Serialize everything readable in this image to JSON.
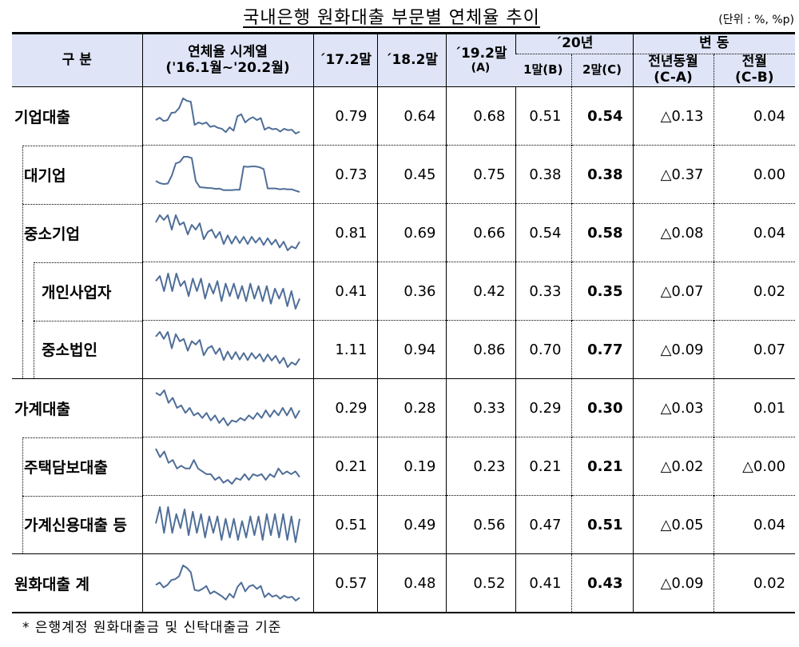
{
  "title": "국내은행 원화대출 부문별 연체율 추이",
  "unit": "(단위 : %, %p)",
  "header": {
    "category": "구 분",
    "series_title": "연체율 시계열",
    "series_range": "('16.1월~'20.2월)",
    "col_17": "´17.2말",
    "col_18": "´18.2말",
    "col_19": "´19.2말",
    "col_19_sub": "(A)",
    "year_20": "´20년",
    "col_20_1": "1말(B)",
    "col_20_2": "2말(C)",
    "change": "변 동",
    "yoy": "전년동월",
    "yoy_sub": "(C-A)",
    "mom": "전월",
    "mom_sub": "(C-B)"
  },
  "spark_color": "#4f6e98",
  "rows": [
    {
      "label": "기업대출",
      "level": 0,
      "values": [
        "0.79",
        "0.64",
        "0.68",
        "0.51",
        "0.54",
        "△0.13",
        "0.04"
      ],
      "trend": [
        5,
        5.5,
        4.8,
        5,
        6.5,
        6.6,
        7.5,
        9.5,
        9,
        8.8,
        4,
        4.5,
        4.2,
        4.5,
        3.6,
        3.8,
        3.4,
        3.2,
        2.5,
        3.5,
        2.8,
        5.8,
        6.2,
        4.5,
        5.2,
        5.6,
        5,
        5.4,
        3,
        3.5,
        3.1,
        3.2,
        2.6,
        3.2,
        2.9,
        3,
        2.2,
        2.6
      ]
    },
    {
      "label": "대기업",
      "level": 1,
      "values": [
        "0.73",
        "0.45",
        "0.75",
        "0.38",
        "0.38",
        "△0.37",
        "0.00"
      ],
      "trend": [
        3,
        2.5,
        2.3,
        2.4,
        4.2,
        7,
        7.3,
        8.5,
        8.5,
        8.2,
        3,
        1.6,
        1.5,
        1.4,
        1.35,
        1.2,
        1.25,
        0.9,
        0.9,
        0.9,
        1,
        1,
        6.3,
        6.2,
        6.3,
        6.3,
        6.1,
        5.7,
        1.3,
        1.3,
        1.3,
        1.1,
        1.2,
        1.1,
        1.1,
        0.8,
        0.5
      ]
    },
    {
      "label": "중소기업",
      "level": 1,
      "values": [
        "0.81",
        "0.69",
        "0.66",
        "0.54",
        "0.58",
        "△0.08",
        "0.04"
      ],
      "trend": [
        7,
        8.5,
        7.5,
        8.5,
        5.5,
        8.5,
        6.5,
        7,
        4.5,
        6.5,
        5.5,
        6.8,
        3.5,
        5,
        5.5,
        3.8,
        5,
        2.5,
        4.3,
        2.6,
        4.1,
        2.7,
        4,
        2.5,
        4,
        2.8,
        3.8,
        2.3,
        3.7,
        2.4,
        3.4,
        1.8,
        3,
        1.2,
        2,
        1.6,
        3
      ]
    },
    {
      "label": "개인사업자",
      "level": 2,
      "values": [
        "0.41",
        "0.36",
        "0.42",
        "0.33",
        "0.35",
        "△0.07",
        "0.02"
      ],
      "trend": [
        7,
        8,
        5,
        8.5,
        5,
        8.5,
        6,
        7,
        4,
        7.5,
        5,
        7.5,
        3.5,
        6.5,
        4.5,
        7,
        3,
        6.5,
        4,
        6.5,
        3.5,
        6,
        3,
        6.5,
        3.5,
        6,
        3,
        6,
        2.5,
        5.5,
        3.5,
        5.5,
        2,
        5,
        1.5,
        3.5
      ]
    },
    {
      "label": "중소법인",
      "level": 2,
      "values": [
        "1.11",
        "0.94",
        "0.86",
        "0.70",
        "0.77",
        "△0.09",
        "0.07"
      ],
      "trend": [
        7.5,
        8.5,
        7,
        8.5,
        5,
        8,
        6.5,
        7,
        4.5,
        6.5,
        5.8,
        6.8,
        3.5,
        5,
        5.5,
        3.8,
        5,
        2.5,
        4.3,
        2.7,
        4.2,
        2.6,
        4,
        2.5,
        4,
        2.8,
        3.8,
        2.2,
        3.7,
        2.4,
        3.4,
        1.8,
        3,
        1,
        2,
        1.5,
        2.8
      ]
    },
    {
      "label": "가계대출",
      "level": 0,
      "values": [
        "0.29",
        "0.28",
        "0.33",
        "0.29",
        "0.30",
        "△0.03",
        "0.01"
      ],
      "trend": [
        8,
        7.5,
        8.5,
        6,
        7,
        5,
        5.5,
        4,
        5,
        3.5,
        4,
        3,
        4,
        2.5,
        3.5,
        2,
        3,
        1.5,
        2.5,
        2.2,
        3,
        2.5,
        3.5,
        2.8,
        4,
        3,
        4.5,
        3.2,
        4.5,
        3.5,
        5,
        3.5,
        5,
        3,
        4.5
      ]
    },
    {
      "label": "주택담보대출",
      "level": 1,
      "values": [
        "0.21",
        "0.19",
        "0.23",
        "0.21",
        "0.21",
        "△0.02",
        "△0.00"
      ],
      "trend": [
        8,
        6.5,
        7.5,
        5.5,
        6,
        4.5,
        5,
        4.5,
        4.5,
        6,
        4.5,
        4,
        3.5,
        3.5,
        2.5,
        3,
        2,
        2.5,
        1.8,
        2.8,
        2.5,
        3.5,
        2.5,
        3.5,
        3.2,
        3.5,
        2.5,
        3.5,
        3,
        4.5,
        3.5,
        4,
        3.5,
        4,
        3
      ]
    },
    {
      "label": "가계신용대출 등",
      "level": 1,
      "values": [
        "0.51",
        "0.49",
        "0.56",
        "0.47",
        "0.51",
        "△0.05",
        "0.04"
      ],
      "trend": [
        5,
        8.5,
        3,
        8.5,
        3,
        7,
        4,
        8,
        2.5,
        7.5,
        3,
        7,
        2,
        6.5,
        3,
        6.5,
        1.5,
        6,
        2,
        6,
        1.5,
        5.5,
        2,
        6.5,
        2.5,
        6.5,
        1.5,
        7,
        2.5,
        7,
        2,
        7,
        1.5,
        6.5,
        1,
        6
      ]
    },
    {
      "label": "원화대출 계",
      "level": 0,
      "values": [
        "0.57",
        "0.48",
        "0.52",
        "0.41",
        "0.43",
        "△0.09",
        "0.02"
      ],
      "trend": [
        5,
        5.5,
        4.5,
        5,
        6,
        6.2,
        6.8,
        9,
        8.5,
        7.6,
        4,
        3.8,
        4.2,
        4.8,
        3.2,
        3.7,
        3.2,
        2.7,
        2,
        3.2,
        2.4,
        4.6,
        5.5,
        3.7,
        4.7,
        5,
        4.2,
        4.8,
        2.5,
        3.3,
        2.6,
        2.9,
        2.2,
        2.8,
        2.4,
        2.6,
        1.8,
        2.4
      ]
    }
  ],
  "footer": "* 은행계정 원화대출금 및 신탁대출금 기준"
}
